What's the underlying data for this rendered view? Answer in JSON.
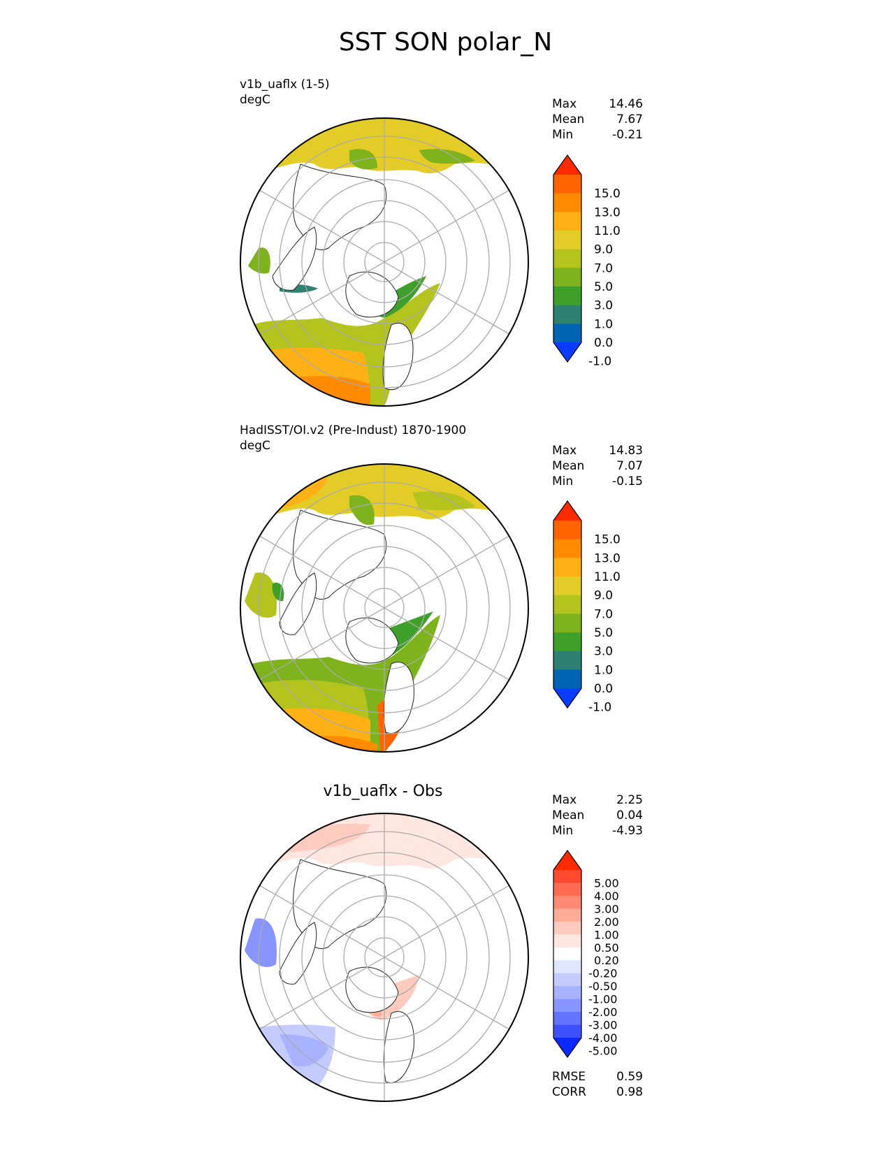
{
  "figure": {
    "title": "SST SON polar_N"
  },
  "panels": [
    {
      "label_line1": "v1b_uaflx (1-5)",
      "label_line2": "degC",
      "stats": [
        {
          "label": "Max",
          "value": "14.46"
        },
        {
          "label": "Mean",
          "value": "7.67"
        },
        {
          "label": "Min",
          "value": "-0.21"
        }
      ],
      "colorbar": {
        "ticks": [
          "15.0",
          "13.0",
          "11.0",
          "9.0",
          "7.0",
          "5.0",
          "3.0",
          "1.0",
          "0.0",
          "-1.0"
        ],
        "colors_top_to_bottom": [
          "#ff2a00",
          "#ff6400",
          "#ff8c00",
          "#ffb014",
          "#e3cc28",
          "#b4c31e",
          "#7fb31e",
          "#3f9f2b",
          "#2e8070",
          "#0064b4",
          "#0a3cff"
        ]
      }
    },
    {
      "label_line1": "HadISST/OI.v2 (Pre-Indust) 1870-1900",
      "label_line2": "degC",
      "stats": [
        {
          "label": "Max",
          "value": "14.83"
        },
        {
          "label": "Mean",
          "value": "7.07"
        },
        {
          "label": "Min",
          "value": "-0.15"
        }
      ],
      "colorbar": {
        "ticks": [
          "15.0",
          "13.0",
          "11.0",
          "9.0",
          "7.0",
          "5.0",
          "3.0",
          "1.0",
          "0.0",
          "-1.0"
        ],
        "colors_top_to_bottom": [
          "#ff2a00",
          "#ff6400",
          "#ff8c00",
          "#ffb014",
          "#e3cc28",
          "#b4c31e",
          "#7fb31e",
          "#3f9f2b",
          "#2e8070",
          "#0064b4",
          "#0a3cff"
        ]
      }
    },
    {
      "title": "v1b_uaflx - Obs",
      "stats": [
        {
          "label": "Max",
          "value": "2.25"
        },
        {
          "label": "Mean",
          "value": "0.04"
        },
        {
          "label": "Min",
          "value": "-4.93"
        }
      ],
      "metrics": [
        {
          "label": "RMSE",
          "value": "0.59"
        },
        {
          "label": "CORR",
          "value": "0.98"
        }
      ],
      "colorbar": {
        "ticks": [
          "5.00",
          "4.00",
          "3.00",
          "2.00",
          "1.00",
          "0.50",
          "0.20",
          "-0.20",
          "-0.50",
          "-1.00",
          "-2.00",
          "-3.00",
          "-4.00",
          "-5.00"
        ],
        "colors_top_to_bottom": [
          "#ff2a00",
          "#ff4a30",
          "#ff6a50",
          "#ff8a74",
          "#ffab98",
          "#ffcbbe",
          "#ffe6e0",
          "#ffffff",
          "#e0e6ff",
          "#c4ccff",
          "#a8b2ff",
          "#8894ff",
          "#6474ff",
          "#3c50ff",
          "#0a28ff"
        ]
      }
    }
  ]
}
